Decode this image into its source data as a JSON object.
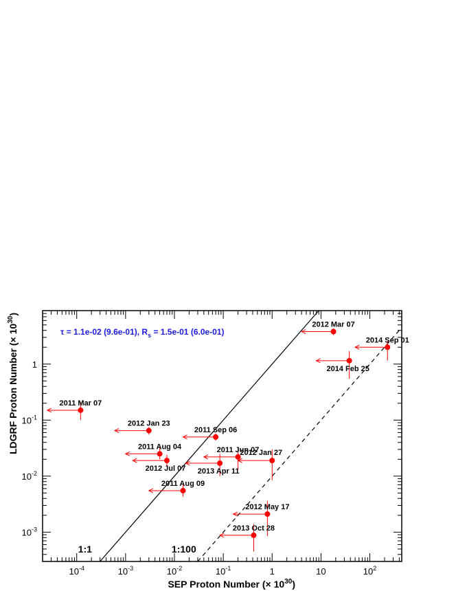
{
  "chart_data": {
    "type": "scatter",
    "xlabel_main": "SEP Proton Number",
    "xlabel_unit": "(× 10",
    "xlabel_unit_exp": "30",
    "xlabel_unit_close": ")",
    "ylabel_main": "LDGRF Proton Number",
    "ylabel_unit": "(× 10",
    "ylabel_unit_exp": "30",
    "ylabel_unit_close": ")",
    "x_scale": "log",
    "y_scale": "log",
    "xlim": [
      2e-05,
      450
    ],
    "ylim": [
      0.0003,
      9
    ],
    "x_ticks": [
      {
        "value": 0.0001,
        "base": "10",
        "exp": "-4"
      },
      {
        "value": 0.001,
        "base": "10",
        "exp": "-3"
      },
      {
        "value": 0.01,
        "base": "10",
        "exp": "-2"
      },
      {
        "value": 0.1,
        "base": "10",
        "exp": "-1"
      },
      {
        "value": 1,
        "base": "1",
        "exp": ""
      },
      {
        "value": 10,
        "base": "10",
        "exp": ""
      },
      {
        "value": 100,
        "base": "10",
        "exp": "2"
      }
    ],
    "y_ticks": [
      {
        "value": 0.001,
        "base": "10",
        "exp": "-3"
      },
      {
        "value": 0.01,
        "base": "10",
        "exp": "-2"
      },
      {
        "value": 0.1,
        "base": "10",
        "exp": "-1"
      },
      {
        "value": 1,
        "base": "1",
        "exp": ""
      }
    ],
    "annotation": {
      "tau": "τ = 1.1e-02 (9.6e-01), R",
      "sub": "s",
      "rest": " = 1.5e-01 (6.0e-01)"
    },
    "reference_lines": [
      {
        "label": "1:1",
        "ratio": 1,
        "style": "solid"
      },
      {
        "label": "1:100",
        "ratio": 0.01,
        "style": "dashed"
      }
    ],
    "marker_color": "#ff0000",
    "points": [
      {
        "label": "2012 Mar 07",
        "x": 18,
        "y": 3.8,
        "x_upper_limit_from": 4.0,
        "y_err": [
          3.3,
          4.3
        ],
        "label_side": "above"
      },
      {
        "label": "2014 Sep 01",
        "x": 230,
        "y": 2.0,
        "x_upper_limit_from": 50,
        "y_err": [
          1.15,
          2.6
        ],
        "label_side": "above"
      },
      {
        "label": "2014 Feb 25",
        "x": 38,
        "y": 1.15,
        "x_upper_limit_from": 8.0,
        "y_err": [
          0.55,
          1.7
        ],
        "label_side": "below"
      },
      {
        "label": "2011 Mar 07",
        "x": 0.00012,
        "y": 0.15,
        "x_upper_limit_from": 2.5e-05,
        "y_err": [
          0.1,
          0.21
        ],
        "label_side": "above"
      },
      {
        "label": "2012 Jan 23",
        "x": 0.003,
        "y": 0.065,
        "x_upper_limit_from": 0.0006,
        "y_err": [
          0.055,
          0.075
        ],
        "label_side": "above"
      },
      {
        "label": "2011 Sep 06",
        "x": 0.07,
        "y": 0.05,
        "x_upper_limit_from": 0.015,
        "y_err": [
          0.043,
          0.058
        ],
        "label_side": "above"
      },
      {
        "label": "2011 Aug 04",
        "x": 0.005,
        "y": 0.025,
        "x_upper_limit_from": 0.001,
        "y_err": [
          0.02,
          0.032
        ],
        "label_side": "above"
      },
      {
        "label": "2011 Jun 07",
        "x": 0.2,
        "y": 0.022,
        "x_upper_limit_from": 0.04,
        "y_err": [
          0.013,
          0.03
        ],
        "label_side": "above"
      },
      {
        "label": "2012 Jan 27",
        "x": 1.0,
        "y": 0.019,
        "x_upper_limit_from": 0.2,
        "y_err": [
          0.0085,
          0.03
        ],
        "label_side": "above-left"
      },
      {
        "label": "2012 Jul 07",
        "x": 0.007,
        "y": 0.019,
        "x_upper_limit_from": 0.0014,
        "y_err": [
          0.015,
          0.024
        ],
        "label_side": "below"
      },
      {
        "label": "2013 Apr 11",
        "x": 0.085,
        "y": 0.017,
        "x_upper_limit_from": 0.017,
        "y_err": [
          0.01,
          0.025
        ],
        "label_side": "below"
      },
      {
        "label": "2011 Aug 09",
        "x": 0.015,
        "y": 0.0055,
        "x_upper_limit_from": 0.003,
        "y_err": [
          0.0043,
          0.007
        ],
        "label_side": "above"
      },
      {
        "label": "2012 May 17",
        "x": 0.8,
        "y": 0.0021,
        "x_upper_limit_from": 0.16,
        "y_err": [
          0.00085,
          0.0036
        ],
        "label_side": "above"
      },
      {
        "label": "2013 Oct 28",
        "x": 0.42,
        "y": 0.00088,
        "x_upper_limit_from": 0.085,
        "y_err": [
          0.00045,
          0.0014
        ],
        "label_side": "above"
      }
    ]
  }
}
